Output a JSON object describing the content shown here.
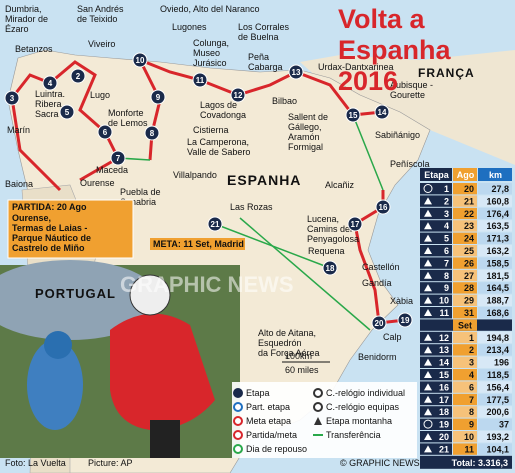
{
  "title": "Volta a Espanha 2016",
  "countries": [
    "ESPANHA",
    "PORTUGAL",
    "FRANÇA"
  ],
  "places": [
    [
      "Dumbria,",
      "Mirador de",
      "Ézaro"
    ],
    [
      "San Andrés",
      "de Teixido"
    ],
    [
      "Betanzos"
    ],
    [
      "Viveiro"
    ],
    [
      "Oviedo, Alto del Naranco"
    ],
    [
      "Lugones"
    ],
    [
      "Colunga,",
      "Museo",
      "Jurásico"
    ],
    [
      "Los Corrales",
      "de Buelna"
    ],
    [
      "Peña",
      "Cabarga"
    ],
    [
      "Urdax-Dantxarinea"
    ],
    [
      "Luintra.",
      "Ribera",
      "Sacra"
    ],
    [
      "Lugo"
    ],
    [
      "Monforte",
      "de Lemos"
    ],
    [
      "Marín"
    ],
    [
      "Baiona"
    ],
    [
      "Ourense"
    ],
    [
      "Maceda"
    ],
    [
      "Puebla de",
      "Sanabria"
    ],
    [
      "Villalpando"
    ],
    [
      "La Camperona,",
      "Valle de Sabero"
    ],
    [
      "Cistierna"
    ],
    [
      "Lagos de",
      "Covadonga"
    ],
    [
      "Bilbao"
    ],
    [
      "Sallent de",
      "Gállego,",
      "Aramón",
      "Formigal"
    ],
    [
      "Aubisque -",
      "Gourette"
    ],
    [
      "Sabiñánigo"
    ],
    [
      "Peñíscola"
    ],
    [
      "Alcañiz"
    ],
    [
      "Lucena,",
      "Camins del",
      "Penyagolosa"
    ],
    [
      "Requena"
    ],
    [
      "Castellón"
    ],
    [
      "Gandía"
    ],
    [
      "Xàbia"
    ],
    [
      "Calp"
    ],
    [
      "Benidorm"
    ],
    [
      "Alto de Aitana,",
      "Esquedrón",
      "da Força Aérea"
    ],
    [
      "Las Rozas"
    ]
  ],
  "start": {
    "label": "PARTIDA: 20 Ago",
    "lines": [
      "Ourense,",
      "Termas de Laias -",
      "Parque Náutico de",
      "Castrelo de Miño"
    ]
  },
  "finish": "META: 11 Set, Madrid",
  "scale": [
    "100km",
    "60 miles"
  ],
  "legend": [
    "Etapa",
    "Part. etapa",
    "Meta etapa",
    "Partida/meta",
    "Dia de repouso",
    "C.-relógio individual",
    "C.-relógio equipas",
    "Etapa montanha",
    "Transferência"
  ],
  "table": {
    "headers": [
      "Etapa",
      "Ago",
      "km"
    ],
    "month2": "Set",
    "rows": [
      [
        "1",
        "20",
        "27,8"
      ],
      [
        "2",
        "21",
        "160,8"
      ],
      [
        "3",
        "22",
        "176,4"
      ],
      [
        "4",
        "23",
        "163,5"
      ],
      [
        "5",
        "24",
        "171,3"
      ],
      [
        "6",
        "25",
        "163,2"
      ],
      [
        "7",
        "26",
        "158,5"
      ],
      [
        "8",
        "27",
        "181,5"
      ],
      [
        "9",
        "28",
        "164,5"
      ],
      [
        "10",
        "29",
        "188,7"
      ],
      [
        "11",
        "31",
        "168,6"
      ],
      [
        "12",
        "1",
        "194,8"
      ],
      [
        "13",
        "2",
        "213,4"
      ],
      [
        "14",
        "3",
        "196"
      ],
      [
        "15",
        "4",
        "118,5"
      ],
      [
        "16",
        "6",
        "156,4"
      ],
      [
        "17",
        "7",
        "177,5"
      ],
      [
        "18",
        "8",
        "200,6"
      ],
      [
        "19",
        "9",
        "37"
      ],
      [
        "20",
        "10",
        "193,2"
      ],
      [
        "21",
        "11",
        "104,1"
      ]
    ],
    "total": "Total: 3.316,3"
  },
  "watermark": "GRAPHIC NEWS",
  "credits": [
    "Foto: La Vuelta",
    "Picture: AP",
    "© GRAPHIC NEWS"
  ]
}
